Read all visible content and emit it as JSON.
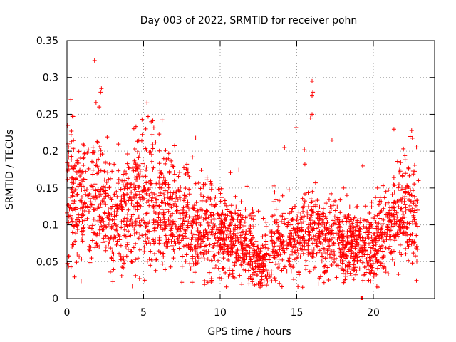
{
  "chart_data": {
    "type": "scatter",
    "title": "Day 003 of 2022, SRMTID for receiver pohn",
    "xlabel": "GPS time / hours",
    "ylabel": "SRMTID / TECUs",
    "xlim": [
      0,
      24
    ],
    "ylim": [
      0,
      0.35
    ],
    "xticks": [
      "0",
      "5",
      "10",
      "15",
      "20"
    ],
    "yticks": [
      "0",
      "0.05",
      "0.1",
      "0.15",
      "0.2",
      "0.25",
      "0.3",
      "0.35"
    ],
    "grid": true,
    "marker": "+",
    "color": "#ff0000",
    "envelope": [
      {
        "x": 0.0,
        "y": 0.14
      },
      {
        "x": 1.0,
        "y": 0.13
      },
      {
        "x": 2.0,
        "y": 0.14
      },
      {
        "x": 3.0,
        "y": 0.1
      },
      {
        "x": 4.0,
        "y": 0.12
      },
      {
        "x": 5.0,
        "y": 0.13
      },
      {
        "x": 6.0,
        "y": 0.13
      },
      {
        "x": 7.0,
        "y": 0.11
      },
      {
        "x": 8.0,
        "y": 0.1
      },
      {
        "x": 9.0,
        "y": 0.09
      },
      {
        "x": 10.0,
        "y": 0.085
      },
      {
        "x": 11.0,
        "y": 0.08
      },
      {
        "x": 12.0,
        "y": 0.07
      },
      {
        "x": 12.7,
        "y": 0.04
      },
      {
        "x": 13.5,
        "y": 0.07
      },
      {
        "x": 14.5,
        "y": 0.08
      },
      {
        "x": 15.5,
        "y": 0.09
      },
      {
        "x": 16.5,
        "y": 0.09
      },
      {
        "x": 17.5,
        "y": 0.08
      },
      {
        "x": 18.5,
        "y": 0.07
      },
      {
        "x": 19.5,
        "y": 0.07
      },
      {
        "x": 20.5,
        "y": 0.08
      },
      {
        "x": 21.5,
        "y": 0.11
      },
      {
        "x": 22.5,
        "y": 0.12
      },
      {
        "x": 22.9,
        "y": 0.1
      }
    ],
    "outliers": [
      {
        "x": 1.8,
        "y": 0.323
      },
      {
        "x": 2.2,
        "y": 0.28
      },
      {
        "x": 2.25,
        "y": 0.285
      },
      {
        "x": 0.25,
        "y": 0.27
      },
      {
        "x": 2.1,
        "y": 0.26
      },
      {
        "x": 1.9,
        "y": 0.266
      },
      {
        "x": 16.0,
        "y": 0.295
      },
      {
        "x": 16.05,
        "y": 0.28
      },
      {
        "x": 16.0,
        "y": 0.275
      },
      {
        "x": 16.0,
        "y": 0.25
      },
      {
        "x": 15.9,
        "y": 0.245
      },
      {
        "x": 14.95,
        "y": 0.232
      },
      {
        "x": 22.5,
        "y": 0.228
      },
      {
        "x": 22.4,
        "y": 0.22
      },
      {
        "x": 0.05,
        "y": 0.235
      },
      {
        "x": 0.4,
        "y": 0.247
      },
      {
        "x": 5.3,
        "y": 0.247
      },
      {
        "x": 5.5,
        "y": 0.24
      },
      {
        "x": 4.9,
        "y": 0.243
      },
      {
        "x": 12.6,
        "y": 0.02
      },
      {
        "x": 12.75,
        "y": 0.018
      },
      {
        "x": 7.5,
        "y": 0.022
      },
      {
        "x": 9.2,
        "y": 0.022
      },
      {
        "x": 8.4,
        "y": 0.218
      },
      {
        "x": 17.3,
        "y": 0.215
      },
      {
        "x": 14.2,
        "y": 0.205
      },
      {
        "x": 19.3,
        "y": 0.18
      },
      {
        "x": 22.95,
        "y": 0.16
      }
    ],
    "baseline_marker": {
      "x": 19.25,
      "y": 0.0
    }
  }
}
